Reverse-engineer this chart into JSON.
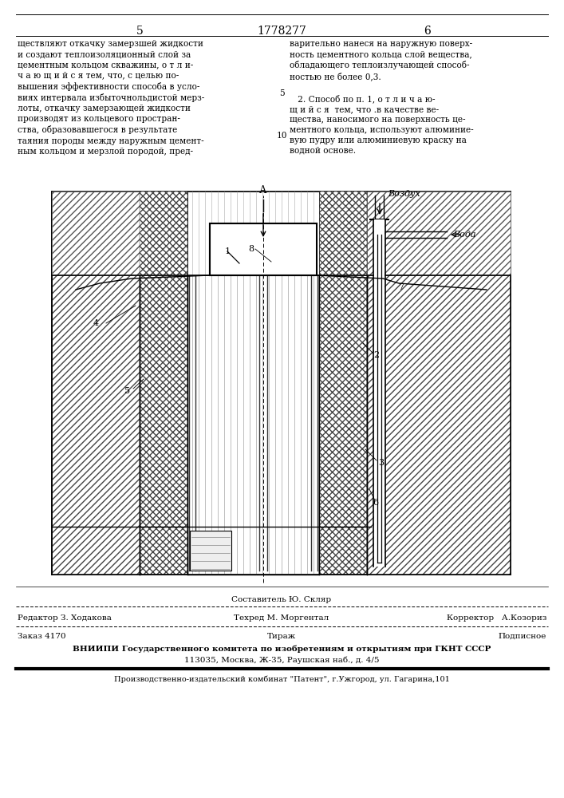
{
  "page_number_left": "5",
  "patent_number": "1778277",
  "page_number_right": "6",
  "text_left": "ществляют откачку замерзшей жидкости\nи создают теплоизоляционный слой за\nцементным кольцом скважины, о т л и-\nч а ю щ и й с я тем, что, с целью по-\nвышения эффективности способа в усло-\nвиях интервала избыточнольдистой мерз-\nлоты, откачку замерзающей жидкости\nпроизводят из кольцевого простран-\nства, образовавшегося в результате\nтаяния породы между наружным цемент-\nным кольцом и мерзлой породой, пред-",
  "text_right": "варительно нанеся на наружную поверх-\nность цементного кольца слой вещества,\nобладающего теплоизлучающей способ-\nностью не более 0,3.\n\n   2. Способ по п. 1, о т л и ч а ю-\nщ и й с я  тем, что .в качестве ве-\nщества, наносимого на поверхность це-\nментного кольца, используют алюминие-\nвую пудру или алюминиевую краску на\nводной основе.",
  "line_num_5": "5",
  "line_num_10": "10",
  "label_A": "А",
  "label_vozdukh": "Воздух",
  "label_voda": "Вода",
  "footer_editor": "Редактор З. Ходакова",
  "footer_composer": "Составитель Ю. Скляр",
  "footer_corrector": "Корректор   А.Козориз",
  "footer_tekhred": "Техред М. Моргентал",
  "footer_order": "Заказ 4170",
  "footer_tirazh": "Тираж",
  "footer_podpisnoe": "Подписное",
  "footer_vniiipi": "ВНИИПИ Государственного комитета по изобретениям и открытиям при ГКНТ СССР",
  "footer_address": "113035, Москва, Ж-35, Раушская наб., д. 4/5",
  "footer_publisher": "Производственно-издательский комбинат \"Патент\", г.Ужгород, ул. Гагарина,101",
  "bg_color": "#ffffff",
  "lc": "#000000",
  "tc": "#000000"
}
